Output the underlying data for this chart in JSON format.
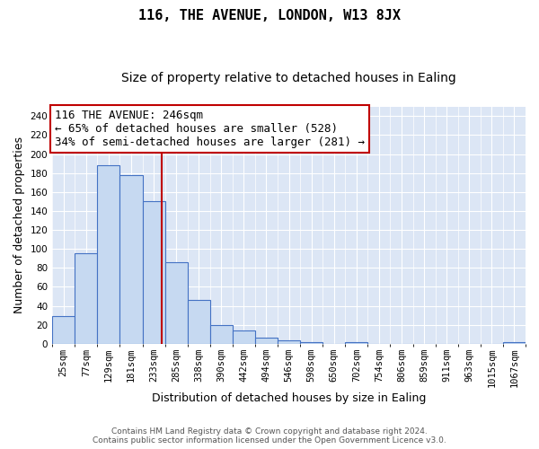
{
  "title": "116, THE AVENUE, LONDON, W13 8JX",
  "subtitle": "Size of property relative to detached houses in Ealing",
  "xlabel": "Distribution of detached houses by size in Ealing",
  "ylabel": "Number of detached properties",
  "footer1": "Contains HM Land Registry data © Crown copyright and database right 2024.",
  "footer2": "Contains public sector information licensed under the Open Government Licence v3.0.",
  "bin_labels": [
    "25sqm",
    "77sqm",
    "129sqm",
    "181sqm",
    "233sqm",
    "285sqm",
    "338sqm",
    "390sqm",
    "442sqm",
    "494sqm",
    "546sqm",
    "598sqm",
    "650sqm",
    "702sqm",
    "754sqm",
    "806sqm",
    "859sqm",
    "911sqm",
    "963sqm",
    "1015sqm",
    "1067sqm"
  ],
  "bar_values": [
    29,
    95,
    188,
    178,
    150,
    86,
    46,
    20,
    14,
    6,
    4,
    2,
    0,
    2,
    0,
    0,
    0,
    0,
    0,
    0,
    2
  ],
  "bar_color": "#c6d9f1",
  "bar_edge_color": "#4472c4",
  "vline_x": 4.36,
  "vline_color": "#c00000",
  "annotation_line1": "116 THE AVENUE: 246sqm",
  "annotation_line2": "← 65% of detached houses are smaller (528)",
  "annotation_line3": "34% of semi-detached houses are larger (281) →",
  "annotation_box_color": "#c00000",
  "ylim": [
    0,
    250
  ],
  "yticks": [
    0,
    20,
    40,
    60,
    80,
    100,
    120,
    140,
    160,
    180,
    200,
    220,
    240
  ],
  "background_color": "#dce6f5",
  "grid_color": "#ffffff",
  "title_fontsize": 11,
  "subtitle_fontsize": 10,
  "label_fontsize": 9,
  "tick_fontsize": 7.5,
  "annot_fontsize": 9
}
